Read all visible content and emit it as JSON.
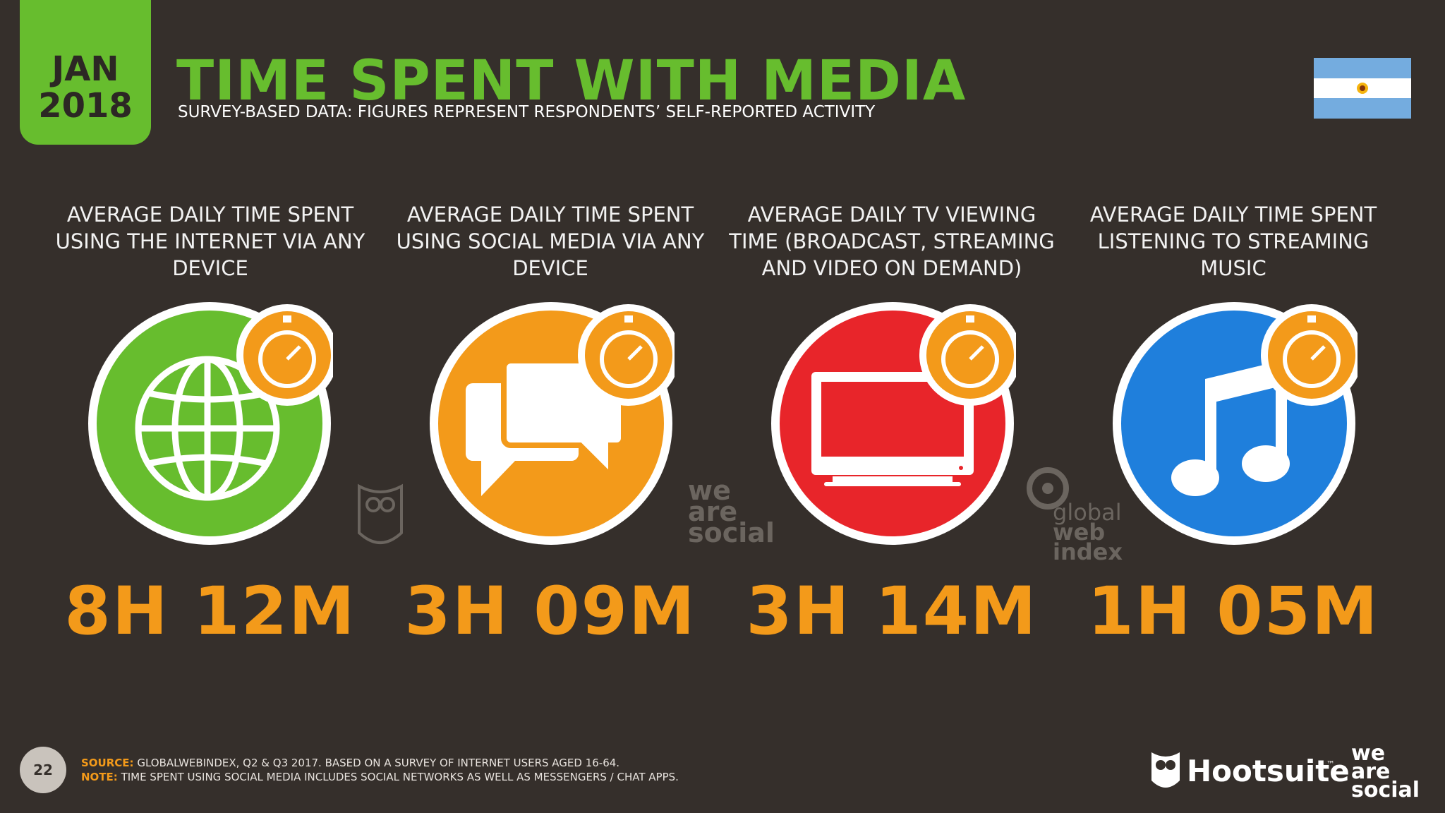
{
  "header": {
    "month": "JAN",
    "year": "2018",
    "title": "TIME SPENT WITH MEDIA",
    "subtitle": "SURVEY-BASED DATA: FIGURES REPRESENT RESPONDENTS’ SELF-REPORTED ACTIVITY",
    "flag_icon": "argentina-flag"
  },
  "metrics": [
    {
      "label": "AVERAGE DAILY TIME SPENT USING THE INTERNET VIA ANY DEVICE",
      "value": "8H 12M",
      "icon": "globe-icon",
      "color": "#67bd2e"
    },
    {
      "label": "AVERAGE DAILY TIME SPENT USING SOCIAL MEDIA VIA ANY DEVICE",
      "value": "3H 09M",
      "icon": "chat-bubbles-icon",
      "color": "#f39a1a"
    },
    {
      "label": "AVERAGE DAILY TV VIEWING TIME (BROADCAST, STREAMING AND VIDEO ON DEMAND)",
      "value": "3H 14M",
      "icon": "tv-icon",
      "color": "#e8252a"
    },
    {
      "label": "AVERAGE DAILY TIME SPENT LISTENING TO STREAMING MUSIC",
      "value": "1H 05M",
      "icon": "music-note-icon",
      "color": "#1f7fdc"
    }
  ],
  "watermarks": {
    "was_line1": "we",
    "was_line2": "are",
    "was_line3": "social",
    "gwi_line1": "global",
    "gwi_line2": "web",
    "gwi_line3": "index"
  },
  "footer": {
    "page_number": "22",
    "source_label": "SOURCE:",
    "source_text": " GLOBALWEBINDEX, Q2 & Q3 2017. BASED ON A SURVEY OF INTERNET USERS AGED 16-64.",
    "note_label": "NOTE:",
    "note_text": " TIME SPENT USING SOCIAL MEDIA INCLUDES SOCIAL NETWORKS AS WELL AS MESSENGERS / CHAT APPS.",
    "hootsuite": "Hootsuite",
    "tm": "™",
    "was1": "we",
    "was2": "are",
    "was3": "social"
  },
  "colors": {
    "background": "#352f2b",
    "accent_green": "#67bd2e",
    "accent_orange": "#f39a1a"
  }
}
